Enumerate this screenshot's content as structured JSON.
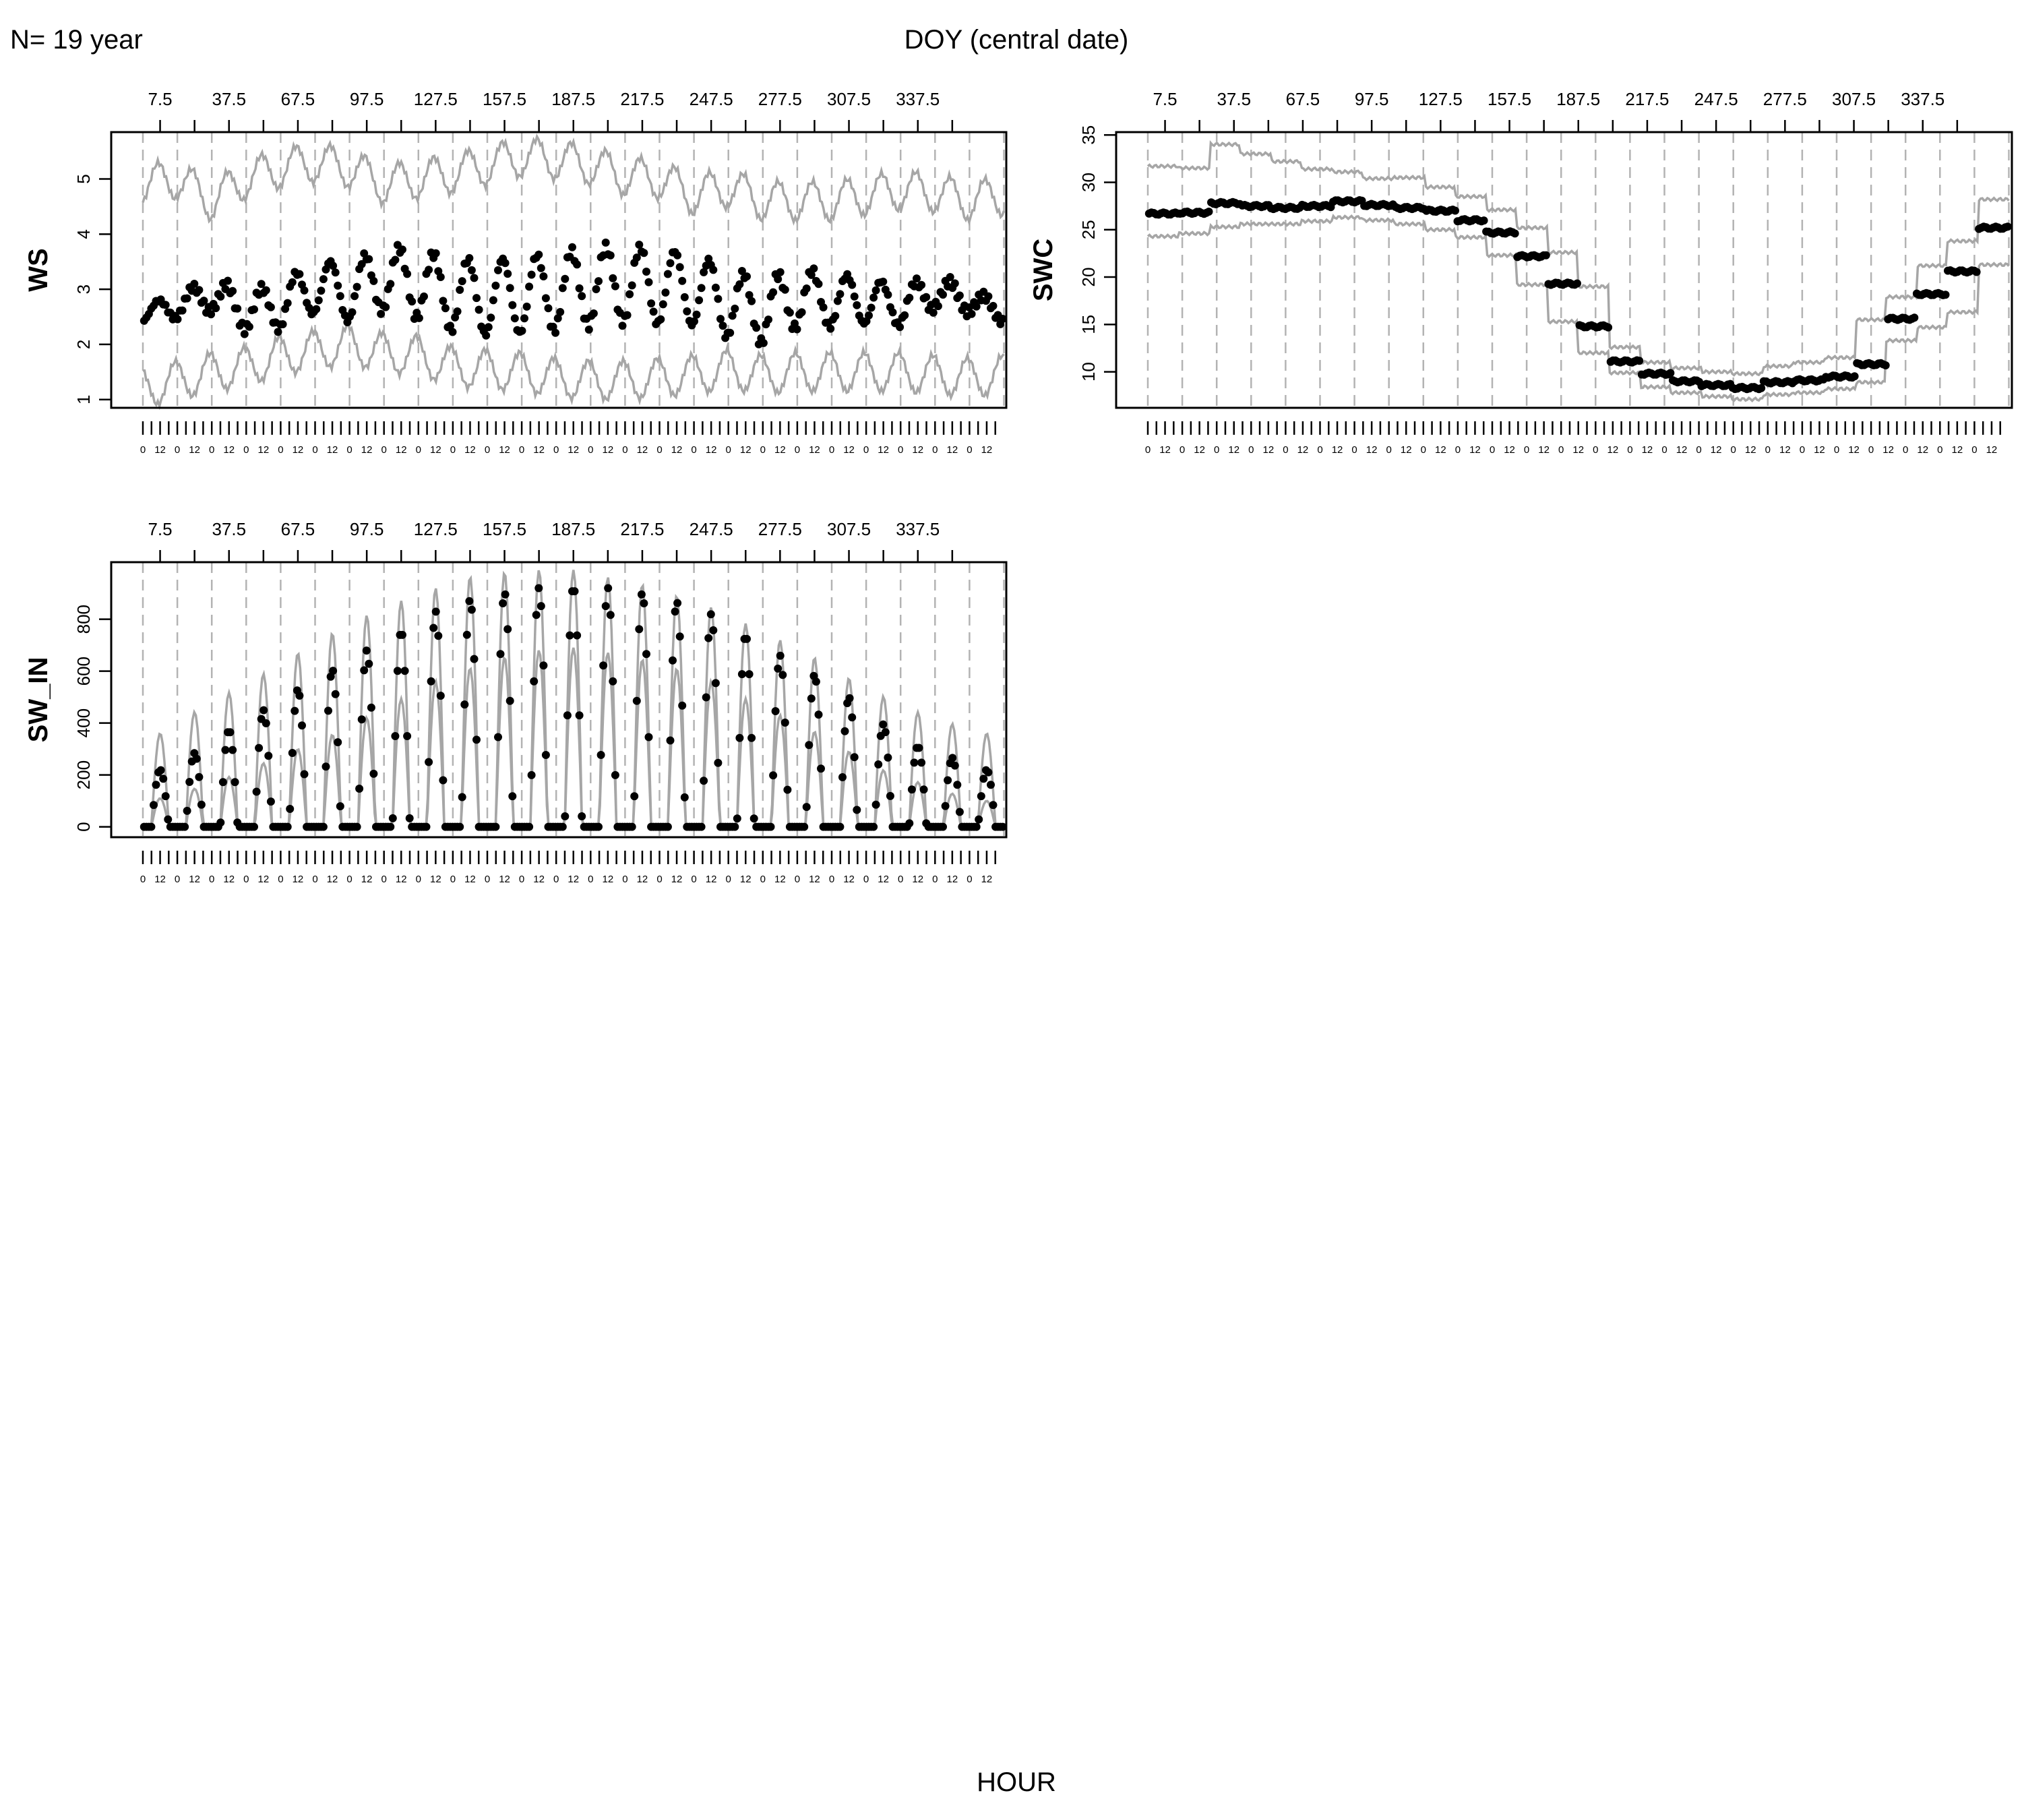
{
  "header": {
    "left_label": "N= 19 year",
    "top_label": "DOY (central date)",
    "bottom_label": "HOUR"
  },
  "colors": {
    "band": "#a6a6a6",
    "points": "#000000",
    "vline": "#b3b3b3",
    "frame": "#000000"
  },
  "chart_data": [
    {
      "id": "ws",
      "type": "scatter",
      "ylabel": "WS",
      "ylim": [
        0.85,
        5.85
      ],
      "yticks": [
        1,
        2,
        3,
        4,
        5
      ],
      "doy_ticks": [
        "7.5",
        "37.5",
        "67.5",
        "97.5",
        "127.5",
        "157.5",
        "187.5",
        "217.5",
        "247.5",
        "277.5",
        "307.5",
        "337.5"
      ],
      "hour_ticks": [
        "0",
        "12"
      ],
      "grid": "vertical dashed",
      "series": [
        {
          "role": "mean",
          "style": "points",
          "values": [
            2.55,
            2.7,
            2.9,
            2.6,
            2.7,
            3.05,
            2.95,
            3.2,
            3.1,
            2.9,
            2.85,
            2.9,
            2.95,
            3.05,
            3.1,
            3.05,
            3.0,
            2.75,
            2.6,
            2.85,
            2.8,
            2.8,
            2.7,
            2.95,
            2.8,
            2.55
          ]
        },
        {
          "role": "upper",
          "style": "line",
          "values": [
            4.9,
            5.0,
            4.6,
            5.0,
            5.2,
            5.3,
            5.2,
            4.9,
            5.0,
            5.1,
            5.25,
            5.4,
            5.35,
            5.25,
            5.05,
            5.0,
            4.7,
            4.85,
            4.6,
            4.6,
            4.6,
            4.7,
            4.8,
            4.75,
            4.6,
            4.7
          ]
        },
        {
          "role": "lower",
          "style": "line",
          "values": [
            1.2,
            1.35,
            1.5,
            1.6,
            1.8,
            1.9,
            2.0,
            1.85,
            1.8,
            1.6,
            1.55,
            1.5,
            1.4,
            1.35,
            1.35,
            1.4,
            1.45,
            1.55,
            1.45,
            1.5,
            1.5,
            1.5,
            1.5,
            1.45,
            1.4,
            1.45
          ]
        }
      ]
    },
    {
      "id": "swc",
      "type": "scatter",
      "ylabel": "SWC",
      "ylim": [
        6.2,
        35.3
      ],
      "yticks": [
        10,
        15,
        20,
        25,
        30,
        35
      ],
      "doy_ticks": [
        "7.5",
        "37.5",
        "67.5",
        "97.5",
        "127.5",
        "157.5",
        "187.5",
        "217.5",
        "247.5",
        "277.5",
        "307.5",
        "337.5"
      ],
      "hour_ticks": [
        "0",
        "12"
      ],
      "grid": "vertical dashed",
      "series": [
        {
          "role": "mean",
          "style": "points",
          "values": [
            26.7,
            26.8,
            27.8,
            27.5,
            27.3,
            27.5,
            28.0,
            27.6,
            27.3,
            27.0,
            26.0,
            24.7,
            22.2,
            19.3,
            14.8,
            11.1,
            9.8,
            9.0,
            8.6,
            8.3,
            8.9,
            9.1,
            9.5,
            10.8,
            15.6,
            18.2,
            20.6,
            25.2
          ]
        },
        {
          "role": "upper",
          "style": "line",
          "values": [
            31.7,
            31.5,
            34.0,
            33.0,
            32.2,
            31.4,
            31.1,
            30.4,
            30.5,
            29.5,
            28.5,
            27.1,
            25.2,
            22.6,
            19.0,
            12.6,
            11.0,
            10.4,
            10.0,
            9.8,
            10.6,
            11.0,
            11.5,
            15.5,
            17.9,
            21.2,
            23.8,
            28.2
          ]
        },
        {
          "role": "lower",
          "style": "line",
          "values": [
            24.3,
            24.6,
            25.3,
            25.6,
            25.6,
            25.9,
            26.3,
            26.0,
            25.6,
            25.0,
            24.2,
            22.3,
            19.2,
            15.3,
            12.0,
            9.9,
            8.4,
            7.8,
            7.4,
            7.1,
            7.6,
            7.8,
            8.2,
            8.9,
            13.3,
            14.7,
            16.3,
            21.3
          ]
        }
      ]
    },
    {
      "id": "sw_in",
      "type": "scatter",
      "ylabel": "SW_IN",
      "ylim": [
        -40,
        1020
      ],
      "yticks": [
        0,
        200,
        400,
        600,
        800
      ],
      "doy_ticks": [
        "7.5",
        "37.5",
        "67.5",
        "97.5",
        "127.5",
        "157.5",
        "187.5",
        "217.5",
        "247.5",
        "277.5",
        "307.5",
        "337.5"
      ],
      "hour_ticks": [
        "0",
        "12"
      ],
      "grid": "vertical dashed",
      "series": [
        {
          "role": "mean_daily_peak",
          "style": "points",
          "values": [
            220,
            290,
            390,
            470,
            560,
            640,
            720,
            810,
            870,
            900,
            920,
            930,
            920,
            900,
            860,
            800,
            700,
            620,
            540,
            420,
            320,
            270,
            220
          ]
        },
        {
          "role": "upper_daily_peak",
          "style": "line",
          "values": [
            360,
            450,
            530,
            610,
            700,
            780,
            850,
            900,
            960,
            980,
            990,
            990,
            960,
            930,
            880,
            830,
            750,
            690,
            600,
            520,
            450,
            400,
            360
          ]
        },
        {
          "role": "lower_daily_peak",
          "style": "line",
          "values": [
            110,
            150,
            200,
            260,
            320,
            380,
            460,
            540,
            600,
            650,
            680,
            690,
            670,
            640,
            600,
            540,
            460,
            400,
            320,
            230,
            180,
            130,
            100
          ]
        }
      ]
    }
  ]
}
